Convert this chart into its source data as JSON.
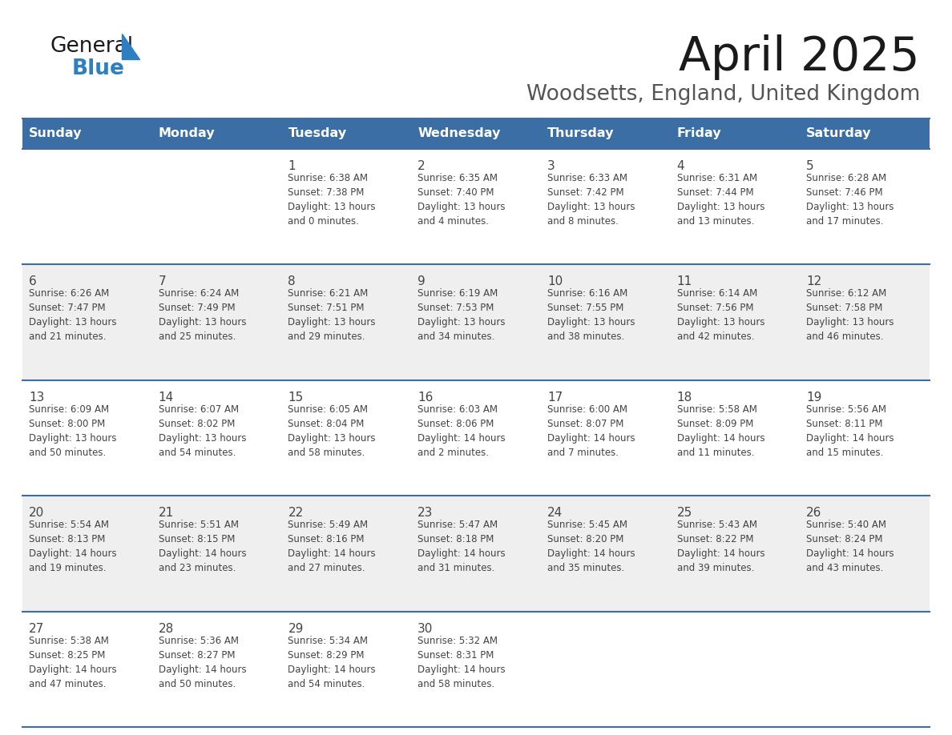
{
  "title": "April 2025",
  "subtitle": "Woodsetts, England, United Kingdom",
  "header_bg": "#3a6ea5",
  "header_text": "#ffffff",
  "cell_bg_even": "#ffffff",
  "cell_bg_odd": "#efefef",
  "divider_color": "#3a6ea5",
  "text_color": "#444444",
  "days_of_week": [
    "Sunday",
    "Monday",
    "Tuesday",
    "Wednesday",
    "Thursday",
    "Friday",
    "Saturday"
  ],
  "calendar": [
    [
      {
        "day": "",
        "info": ""
      },
      {
        "day": "",
        "info": ""
      },
      {
        "day": "1",
        "info": "Sunrise: 6:38 AM\nSunset: 7:38 PM\nDaylight: 13 hours\nand 0 minutes."
      },
      {
        "day": "2",
        "info": "Sunrise: 6:35 AM\nSunset: 7:40 PM\nDaylight: 13 hours\nand 4 minutes."
      },
      {
        "day": "3",
        "info": "Sunrise: 6:33 AM\nSunset: 7:42 PM\nDaylight: 13 hours\nand 8 minutes."
      },
      {
        "day": "4",
        "info": "Sunrise: 6:31 AM\nSunset: 7:44 PM\nDaylight: 13 hours\nand 13 minutes."
      },
      {
        "day": "5",
        "info": "Sunrise: 6:28 AM\nSunset: 7:46 PM\nDaylight: 13 hours\nand 17 minutes."
      }
    ],
    [
      {
        "day": "6",
        "info": "Sunrise: 6:26 AM\nSunset: 7:47 PM\nDaylight: 13 hours\nand 21 minutes."
      },
      {
        "day": "7",
        "info": "Sunrise: 6:24 AM\nSunset: 7:49 PM\nDaylight: 13 hours\nand 25 minutes."
      },
      {
        "day": "8",
        "info": "Sunrise: 6:21 AM\nSunset: 7:51 PM\nDaylight: 13 hours\nand 29 minutes."
      },
      {
        "day": "9",
        "info": "Sunrise: 6:19 AM\nSunset: 7:53 PM\nDaylight: 13 hours\nand 34 minutes."
      },
      {
        "day": "10",
        "info": "Sunrise: 6:16 AM\nSunset: 7:55 PM\nDaylight: 13 hours\nand 38 minutes."
      },
      {
        "day": "11",
        "info": "Sunrise: 6:14 AM\nSunset: 7:56 PM\nDaylight: 13 hours\nand 42 minutes."
      },
      {
        "day": "12",
        "info": "Sunrise: 6:12 AM\nSunset: 7:58 PM\nDaylight: 13 hours\nand 46 minutes."
      }
    ],
    [
      {
        "day": "13",
        "info": "Sunrise: 6:09 AM\nSunset: 8:00 PM\nDaylight: 13 hours\nand 50 minutes."
      },
      {
        "day": "14",
        "info": "Sunrise: 6:07 AM\nSunset: 8:02 PM\nDaylight: 13 hours\nand 54 minutes."
      },
      {
        "day": "15",
        "info": "Sunrise: 6:05 AM\nSunset: 8:04 PM\nDaylight: 13 hours\nand 58 minutes."
      },
      {
        "day": "16",
        "info": "Sunrise: 6:03 AM\nSunset: 8:06 PM\nDaylight: 14 hours\nand 2 minutes."
      },
      {
        "day": "17",
        "info": "Sunrise: 6:00 AM\nSunset: 8:07 PM\nDaylight: 14 hours\nand 7 minutes."
      },
      {
        "day": "18",
        "info": "Sunrise: 5:58 AM\nSunset: 8:09 PM\nDaylight: 14 hours\nand 11 minutes."
      },
      {
        "day": "19",
        "info": "Sunrise: 5:56 AM\nSunset: 8:11 PM\nDaylight: 14 hours\nand 15 minutes."
      }
    ],
    [
      {
        "day": "20",
        "info": "Sunrise: 5:54 AM\nSunset: 8:13 PM\nDaylight: 14 hours\nand 19 minutes."
      },
      {
        "day": "21",
        "info": "Sunrise: 5:51 AM\nSunset: 8:15 PM\nDaylight: 14 hours\nand 23 minutes."
      },
      {
        "day": "22",
        "info": "Sunrise: 5:49 AM\nSunset: 8:16 PM\nDaylight: 14 hours\nand 27 minutes."
      },
      {
        "day": "23",
        "info": "Sunrise: 5:47 AM\nSunset: 8:18 PM\nDaylight: 14 hours\nand 31 minutes."
      },
      {
        "day": "24",
        "info": "Sunrise: 5:45 AM\nSunset: 8:20 PM\nDaylight: 14 hours\nand 35 minutes."
      },
      {
        "day": "25",
        "info": "Sunrise: 5:43 AM\nSunset: 8:22 PM\nDaylight: 14 hours\nand 39 minutes."
      },
      {
        "day": "26",
        "info": "Sunrise: 5:40 AM\nSunset: 8:24 PM\nDaylight: 14 hours\nand 43 minutes."
      }
    ],
    [
      {
        "day": "27",
        "info": "Sunrise: 5:38 AM\nSunset: 8:25 PM\nDaylight: 14 hours\nand 47 minutes."
      },
      {
        "day": "28",
        "info": "Sunrise: 5:36 AM\nSunset: 8:27 PM\nDaylight: 14 hours\nand 50 minutes."
      },
      {
        "day": "29",
        "info": "Sunrise: 5:34 AM\nSunset: 8:29 PM\nDaylight: 14 hours\nand 54 minutes."
      },
      {
        "day": "30",
        "info": "Sunrise: 5:32 AM\nSunset: 8:31 PM\nDaylight: 14 hours\nand 58 minutes."
      },
      {
        "day": "",
        "info": ""
      },
      {
        "day": "",
        "info": ""
      },
      {
        "day": "",
        "info": ""
      }
    ]
  ],
  "logo_triangle_color": "#2e7fc1",
  "fig_bg": "#ffffff",
  "title_fontsize": 42,
  "subtitle_fontsize": 19,
  "header_fontsize": 11.5,
  "day_num_fontsize": 11,
  "info_fontsize": 8.5
}
